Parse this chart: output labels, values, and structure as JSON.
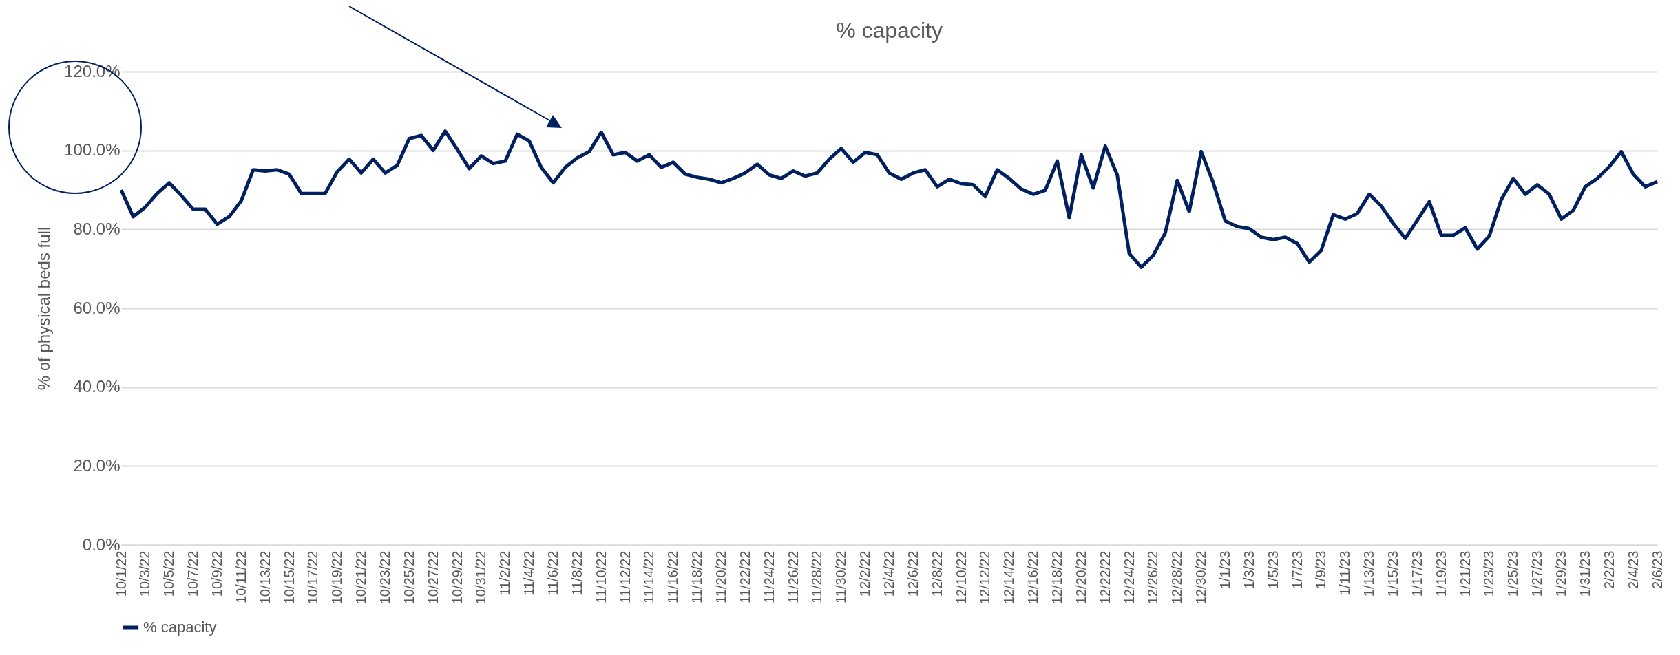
{
  "chart_data": {
    "type": "line",
    "title": "% capacity",
    "ylabel": "% of physical beds full",
    "categories": [
      "10/1/22",
      null,
      "10/3/22",
      null,
      "10/5/22",
      null,
      "10/7/22",
      null,
      "10/9/22",
      null,
      "10/11/22",
      null,
      "10/13/22",
      null,
      "10/15/22",
      null,
      "10/17/22",
      null,
      "10/19/22",
      null,
      "10/21/22",
      null,
      "10/23/22",
      null,
      "10/25/22",
      null,
      "10/27/22",
      null,
      "10/29/22",
      null,
      "10/31/22",
      null,
      "11/2/22",
      null,
      "11/4/22",
      null,
      "11/6/22",
      null,
      "11/8/22",
      null,
      "11/10/22",
      null,
      "11/12/22",
      null,
      "11/14/22",
      null,
      "11/16/22",
      null,
      "11/18/22",
      null,
      "11/20/22",
      null,
      "11/22/22",
      null,
      "11/24/22",
      null,
      "11/26/22",
      null,
      "11/28/22",
      null,
      "11/30/22",
      null,
      "12/2/22",
      null,
      "12/4/22",
      null,
      "12/6/22",
      null,
      "12/8/22",
      null,
      "12/10/22",
      null,
      "12/12/22",
      null,
      "12/14/22",
      null,
      "12/16/22",
      null,
      "12/18/22",
      null,
      "12/20/22",
      null,
      "12/22/22",
      null,
      "12/24/22",
      null,
      "12/26/22",
      null,
      "12/28/22",
      null,
      "12/30/22",
      null,
      "1/1/23",
      null,
      "1/3/23",
      null,
      "1/5/23",
      null,
      "1/7/23",
      null,
      "1/9/23",
      null,
      "1/11/23",
      null,
      "1/13/23",
      null,
      "1/15/23",
      null,
      "1/17/23",
      null,
      "1/19/23",
      null,
      "1/21/23",
      null,
      "1/23/23",
      null,
      "1/25/23",
      null,
      "1/27/23",
      null,
      "1/29/23",
      null,
      "1/31/23",
      null,
      "2/2/23",
      null,
      "2/4/23",
      null,
      "2/6/23"
    ],
    "series": [
      {
        "name": "% capacity",
        "color": "#002060",
        "values": [
          90.0,
          83.2,
          85.6,
          89.1,
          91.8,
          88.6,
          85.1,
          85.1,
          81.3,
          83.2,
          87.2,
          95.1,
          94.8,
          95.1,
          94.0,
          89.1,
          89.1,
          89.1,
          94.6,
          97.8,
          94.3,
          97.8,
          94.3,
          96.2,
          103.0,
          103.8,
          100.0,
          104.9,
          100.3,
          95.4,
          98.6,
          96.7,
          97.3,
          104.1,
          102.4,
          95.7,
          91.8,
          95.7,
          98.1,
          99.7,
          104.6,
          98.9,
          99.5,
          97.3,
          98.9,
          95.7,
          97.0,
          94.0,
          93.2,
          92.7,
          91.8,
          92.9,
          94.3,
          96.5,
          93.8,
          92.9,
          94.8,
          93.5,
          94.3,
          97.8,
          100.5,
          97.0,
          99.5,
          98.9,
          94.3,
          92.7,
          94.3,
          95.1,
          90.8,
          92.7,
          91.6,
          91.3,
          88.3,
          95.1,
          92.9,
          90.2,
          88.9,
          89.9,
          97.3,
          82.9,
          98.9,
          90.5,
          101.1,
          93.8,
          73.9,
          70.4,
          73.4,
          79.1,
          92.4,
          84.5,
          99.7,
          91.8,
          82.1,
          80.7,
          80.2,
          78.0,
          77.4,
          78.0,
          76.4,
          71.7,
          74.7,
          83.7,
          82.6,
          84.0,
          88.9,
          85.9,
          81.5,
          77.7,
          82.3,
          87.0,
          78.5,
          78.5,
          80.4,
          75.0,
          78.3,
          87.5,
          92.9,
          88.9,
          91.3,
          88.9,
          82.6,
          84.8,
          90.8,
          92.9,
          95.9,
          99.7,
          94.0,
          90.8,
          92.1
        ]
      }
    ],
    "ylim": [
      0,
      120
    ],
    "yticks": [
      {
        "value": 0,
        "label": "0.0%"
      },
      {
        "value": 20,
        "label": "20.0%"
      },
      {
        "value": 40,
        "label": "40.0%"
      },
      {
        "value": 60,
        "label": "60.0%"
      },
      {
        "value": 80,
        "label": "80.0%"
      },
      {
        "value": 100,
        "label": "100.0%"
      },
      {
        "value": 120,
        "label": "120.0%"
      }
    ],
    "grid": "y",
    "legend": "bottom",
    "line_style": "solid",
    "marker": "none"
  }
}
